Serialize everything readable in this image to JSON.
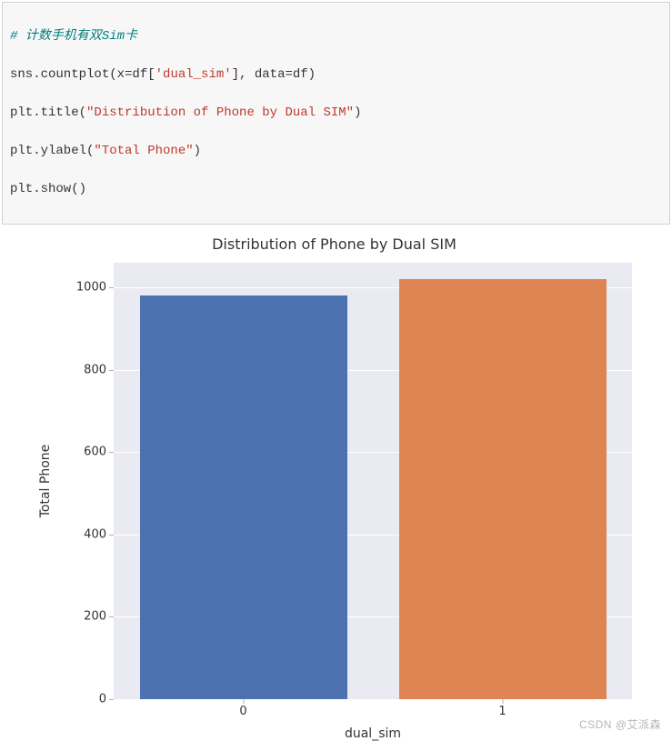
{
  "code": {
    "comment": "# 计数手机有双Sim卡",
    "line2_pre": "sns.countplot(x=df[",
    "line2_str": "'dual_sim'",
    "line2_post": "], data=df)",
    "line3_pre": "plt.title(",
    "line3_str": "\"Distribution of Phone by Dual SIM\"",
    "line3_post": ")",
    "line4_pre": "plt.ylabel(",
    "line4_str": "\"Total Phone\"",
    "line4_post": ")",
    "line5": "plt.show()"
  },
  "chart": {
    "type": "bar",
    "title": "Distribution of Phone by Dual SIM",
    "title_fontsize": 16,
    "xlabel": "dual_sim",
    "ylabel": "Total Phone",
    "label_fontsize": 14,
    "categories": [
      "0",
      "1"
    ],
    "values": [
      980,
      1020
    ],
    "bar_colors": [
      "#4c72b0",
      "#dd8452"
    ],
    "background_color": "#eaeaf2",
    "grid_color": "#ffffff",
    "ylim": [
      0,
      1060
    ],
    "ytick_step": 200,
    "yticks": [
      0,
      200,
      400,
      600,
      800,
      1000
    ],
    "tick_fontsize": 13,
    "bar_width_ratio": 0.8
  },
  "watermark": "CSDN @艾派森"
}
